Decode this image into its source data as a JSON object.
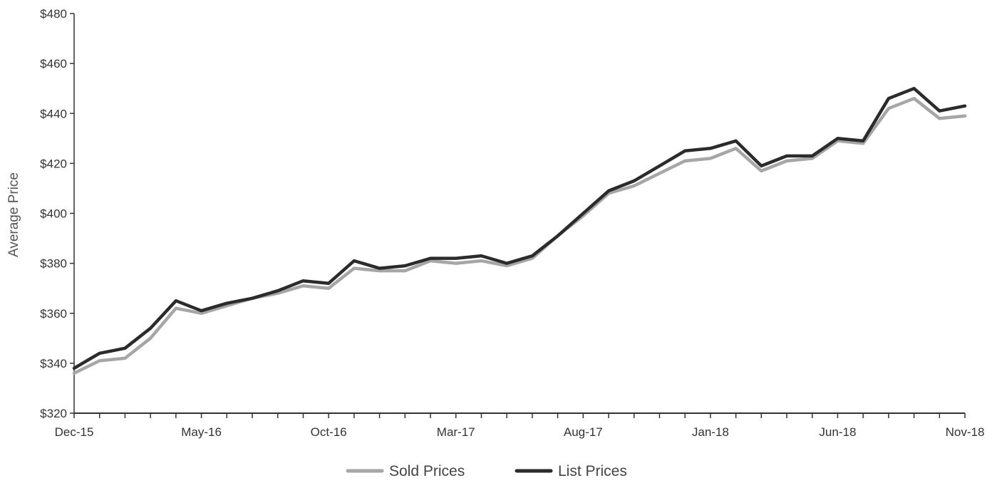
{
  "chart_data": {
    "type": "line",
    "title": "",
    "xlabel": "",
    "ylabel": "Average Price",
    "ylim": [
      320,
      480
    ],
    "y_ticks": [
      320,
      340,
      360,
      380,
      400,
      420,
      440,
      460,
      480
    ],
    "y_tick_labels": [
      "$320",
      "$340",
      "$360",
      "$380",
      "$400",
      "$420",
      "$440",
      "$460",
      "$480"
    ],
    "x": [
      "Dec-15",
      "Jan-16",
      "Feb-16",
      "Mar-16",
      "Apr-16",
      "May-16",
      "Jun-16",
      "Jul-16",
      "Aug-16",
      "Sep-16",
      "Oct-16",
      "Nov-16",
      "Dec-16",
      "Jan-17",
      "Feb-17",
      "Mar-17",
      "Apr-17",
      "May-17",
      "Jun-17",
      "Jul-17",
      "Aug-17",
      "Sep-17",
      "Oct-17",
      "Nov-17",
      "Dec-17",
      "Jan-18",
      "Feb-18",
      "Mar-18",
      "Apr-18",
      "May-18",
      "Jun-18",
      "Jul-18",
      "Aug-18",
      "Sep-18",
      "Oct-18",
      "Nov-18"
    ],
    "x_tick_labels": [
      "Dec-15",
      "May-16",
      "Oct-16",
      "Mar-17",
      "Aug-17",
      "Jan-18",
      "Jun-18",
      "Nov-18"
    ],
    "legend_position": "bottom",
    "grid": false,
    "series": [
      {
        "name": "Sold Prices",
        "color": "#a6a6a6",
        "values": [
          336,
          341,
          342,
          350,
          362,
          360,
          363,
          366,
          368,
          371,
          370,
          378,
          377,
          377,
          381,
          380,
          381,
          379,
          382,
          391,
          399,
          408,
          411,
          416,
          421,
          422,
          426,
          417,
          421,
          422,
          429,
          428,
          442,
          446,
          438,
          439
        ]
      },
      {
        "name": "List Prices",
        "color": "#2b2b2b",
        "values": [
          338,
          344,
          346,
          354,
          365,
          361,
          364,
          366,
          369,
          373,
          372,
          381,
          378,
          379,
          382,
          382,
          383,
          380,
          383,
          391,
          400,
          409,
          413,
          419,
          425,
          426,
          429,
          419,
          423,
          423,
          430,
          429,
          446,
          450,
          441,
          443
        ]
      }
    ]
  }
}
